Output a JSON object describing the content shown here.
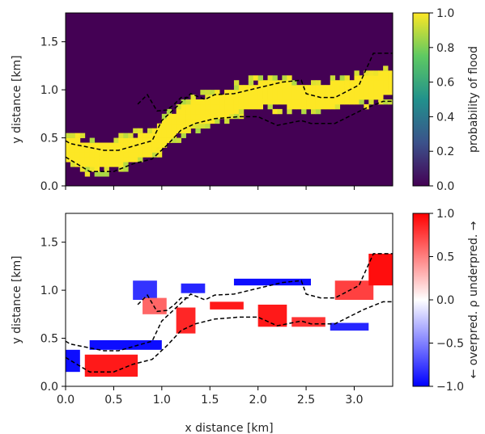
{
  "chart_data": [
    {
      "type": "heatmap",
      "colormap": "viridis",
      "xlim": [
        0,
        3.4
      ],
      "ylim": [
        0,
        1.8
      ],
      "x_ticks": [
        0.0,
        0.5,
        1.0,
        1.5,
        2.0,
        2.5,
        3.0
      ],
      "y_ticks": [
        0.0,
        0.5,
        1.0,
        1.5
      ],
      "y_tick_labels": [
        "0.0",
        "0.5",
        "1.0",
        "1.5"
      ],
      "ylabel": "y distance [km]",
      "xlabel": "",
      "colorbar": {
        "label": "probability of flood",
        "range": [
          0.0,
          1.0
        ],
        "ticks": [
          0.0,
          0.2,
          0.4,
          0.6,
          0.8,
          1.0
        ],
        "tick_labels": [
          "0.0",
          "0.2",
          "0.4",
          "0.6",
          "0.8",
          "1.0"
        ]
      },
      "flood_band_center": {
        "x": [
          0.0,
          0.3,
          0.6,
          0.9,
          1.1,
          1.3,
          1.6,
          1.8,
          2.0,
          2.2,
          2.5,
          2.8,
          3.1,
          3.4
        ],
        "y": [
          0.38,
          0.3,
          0.35,
          0.45,
          0.62,
          0.75,
          0.82,
          0.9,
          0.95,
          0.97,
          0.92,
          0.95,
          1.02,
          1.08
        ]
      },
      "dashed_lines": [
        {
          "x": [
            0.0,
            0.05,
            0.4,
            0.55,
            0.9,
            1.0,
            1.3,
            1.45,
            1.55,
            1.75,
            2.25,
            2.45,
            2.5,
            2.65,
            2.8,
            3.05,
            3.2,
            3.4
          ],
          "y": [
            0.47,
            0.44,
            0.37,
            0.37,
            0.47,
            0.68,
            0.96,
            0.9,
            0.95,
            0.96,
            1.08,
            1.1,
            0.96,
            0.92,
            0.92,
            1.05,
            1.38,
            1.38
          ]
        },
        {
          "x": [
            0.0,
            0.25,
            0.5,
            0.7,
            0.9,
            1.05,
            1.2,
            1.35,
            1.55,
            1.8,
            2.0,
            2.2,
            2.45,
            2.55,
            2.8,
            3.1,
            3.3,
            3.4
          ],
          "y": [
            0.3,
            0.15,
            0.15,
            0.23,
            0.28,
            0.42,
            0.58,
            0.65,
            0.7,
            0.72,
            0.72,
            0.63,
            0.68,
            0.65,
            0.65,
            0.8,
            0.88,
            0.88
          ]
        },
        {
          "x": [
            0.75,
            0.85,
            0.95,
            1.05,
            1.12,
            1.2,
            1.3
          ],
          "y": [
            0.85,
            0.95,
            0.78,
            0.79,
            0.84,
            0.92,
            0.92
          ]
        }
      ]
    },
    {
      "type": "heatmap",
      "colormap": "bwr",
      "xlim": [
        0,
        3.4
      ],
      "ylim": [
        0,
        1.8
      ],
      "x_ticks": [
        0.0,
        0.5,
        1.0,
        1.5,
        2.0,
        2.5,
        3.0
      ],
      "x_tick_labels": [
        "0.0",
        "0.5",
        "1.0",
        "1.5",
        "2.0",
        "2.5",
        "3.0"
      ],
      "y_ticks": [
        0.0,
        0.5,
        1.0,
        1.5
      ],
      "y_tick_labels": [
        "0.0",
        "0.5",
        "1.0",
        "1.5"
      ],
      "ylabel": "y distance [km]",
      "xlabel": "x distance [km]",
      "colorbar": {
        "label": "← overpred.  ρ  underpred. →",
        "range": [
          -1.0,
          1.0
        ],
        "ticks": [
          -1.0,
          -0.5,
          0.0,
          0.5,
          1.0
        ],
        "tick_labels": [
          "−1.0",
          "−0.5",
          "0.0",
          "0.5",
          "1.0"
        ]
      },
      "patches": [
        {
          "x": [
            0.0,
            0.15
          ],
          "y": [
            0.15,
            0.38
          ],
          "value": -0.95
        },
        {
          "x": [
            0.2,
            0.75
          ],
          "y": [
            0.1,
            0.33
          ],
          "value": 0.9
        },
        {
          "x": [
            0.25,
            1.0
          ],
          "y": [
            0.38,
            0.48
          ],
          "value": -0.95
        },
        {
          "x": [
            0.7,
            0.95
          ],
          "y": [
            0.9,
            1.1
          ],
          "value": -0.8
        },
        {
          "x": [
            0.8,
            1.05
          ],
          "y": [
            0.75,
            0.92
          ],
          "value": 0.6
        },
        {
          "x": [
            1.15,
            1.35
          ],
          "y": [
            0.55,
            0.82
          ],
          "value": 0.85
        },
        {
          "x": [
            1.2,
            1.45
          ],
          "y": [
            0.97,
            1.07
          ],
          "value": -0.85
        },
        {
          "x": [
            1.5,
            1.85
          ],
          "y": [
            0.8,
            0.88
          ],
          "value": 0.9
        },
        {
          "x": [
            1.75,
            2.55
          ],
          "y": [
            1.05,
            1.12
          ],
          "value": -0.95
        },
        {
          "x": [
            2.0,
            2.3
          ],
          "y": [
            0.62,
            0.85
          ],
          "value": 0.9
        },
        {
          "x": [
            2.35,
            2.7
          ],
          "y": [
            0.62,
            0.72
          ],
          "value": 0.8
        },
        {
          "x": [
            2.75,
            3.15
          ],
          "y": [
            0.58,
            0.66
          ],
          "value": -0.85
        },
        {
          "x": [
            2.8,
            3.2
          ],
          "y": [
            0.9,
            1.1
          ],
          "value": 0.75
        },
        {
          "x": [
            3.15,
            3.4
          ],
          "y": [
            1.05,
            1.38
          ],
          "value": 0.95
        }
      ]
    }
  ]
}
